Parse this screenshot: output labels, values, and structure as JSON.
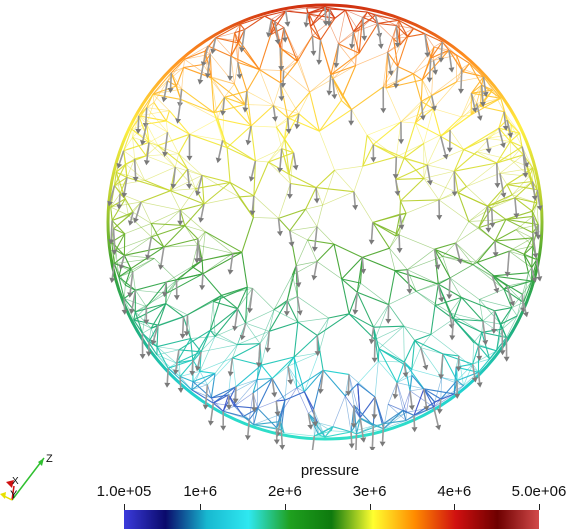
{
  "scene": {
    "colormap": [
      "#3b3bdc",
      "#0a0a6b",
      "#18b8d0",
      "#2fe8f0",
      "#1fa01f",
      "#0e7a0e",
      "#ffff30",
      "#ff8c00",
      "#d01010",
      "#6e0000",
      "#d24a4a"
    ]
  },
  "colorbar": {
    "title": "pressure",
    "ticks": [
      "1.0e+05",
      "1e+6",
      "2e+6",
      "3e+6",
      "4e+6",
      "5.0e+06"
    ]
  },
  "axes": {
    "x_label": "X",
    "y_label": "Y",
    "z_label": "Z",
    "x_color": "#d01010",
    "y_color": "#e8e000",
    "z_color": "#30c030"
  }
}
